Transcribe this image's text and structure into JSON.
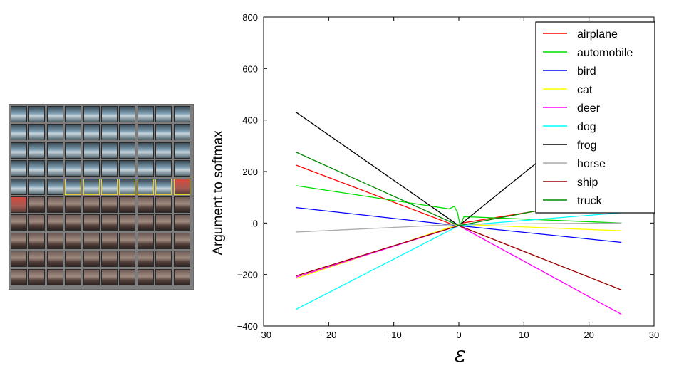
{
  "image_grid": {
    "rows": 10,
    "cols": 10,
    "rows_sky": 5,
    "highlighted_row": 4,
    "highlighted_from_col": 3,
    "top_tint": "#5f7f96",
    "bottom_tint": "#7a5a52",
    "highlight_color": "#e0d030",
    "marked_cell_color": "#d44a40"
  },
  "chart_data": {
    "type": "line",
    "title": "",
    "xlabel": "ε",
    "ylabel": "Argument to softmax",
    "xlim": [
      -30,
      30
    ],
    "ylim": [
      -400,
      800
    ],
    "xticks": [
      -30,
      -20,
      -10,
      0,
      10,
      20,
      30
    ],
    "yticks": [
      -400,
      -200,
      0,
      200,
      400,
      600,
      800
    ],
    "xtick_labels": [
      "−30",
      "−20",
      "−10",
      "0",
      "10",
      "20",
      "30"
    ],
    "ytick_labels": [
      "−400",
      "−200",
      "0",
      "200",
      "400",
      "600",
      "800"
    ],
    "grid": false,
    "legend_position": "top-right",
    "series": [
      {
        "name": "airplane",
        "color": "#ff0000",
        "x": [
          -25,
          -0.5,
          0,
          0.5,
          25
        ],
        "y": [
          225,
          -10,
          -5,
          0,
          100
        ]
      },
      {
        "name": "automobile",
        "color": "#00dd00",
        "x": [
          -25,
          -1.5,
          -0.7,
          -0.2,
          0.2,
          0.8,
          25
        ],
        "y": [
          145,
          55,
          65,
          40,
          -10,
          25,
          0
        ]
      },
      {
        "name": "bird",
        "color": "#0000ff",
        "x": [
          -25,
          0,
          25
        ],
        "y": [
          60,
          -10,
          -75
        ]
      },
      {
        "name": "cat",
        "color": "#ffff00",
        "x": [
          -25,
          0,
          25
        ],
        "y": [
          -215,
          -5,
          -30
        ]
      },
      {
        "name": "deer",
        "color": "#ff00ff",
        "x": [
          -25,
          0,
          25
        ],
        "y": [
          -210,
          -10,
          -355
        ]
      },
      {
        "name": "dog",
        "color": "#00ffff",
        "x": [
          -25,
          0,
          25
        ],
        "y": [
          -335,
          -10,
          40
        ]
      },
      {
        "name": "frog",
        "color": "#000000",
        "x": [
          -25,
          0,
          25
        ],
        "y": [
          430,
          -10,
          500
        ]
      },
      {
        "name": "horse",
        "color": "#aaaaaa",
        "x": [
          -25,
          0,
          25
        ],
        "y": [
          -35,
          -5,
          0
        ]
      },
      {
        "name": "ship",
        "color": "#990000",
        "x": [
          -25,
          0,
          25
        ],
        "y": [
          -205,
          -10,
          -260
        ]
      },
      {
        "name": "truck",
        "color": "#008800",
        "x": [
          -25,
          0,
          25
        ],
        "y": [
          275,
          -10,
          110
        ]
      }
    ]
  }
}
